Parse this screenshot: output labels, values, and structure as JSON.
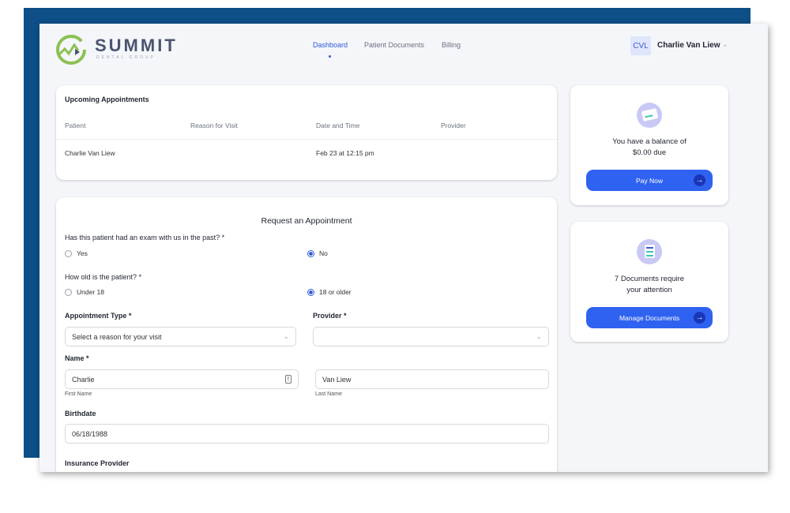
{
  "brand": {
    "name": "SUMMIT",
    "sub": "DENTAL GROUP",
    "logo_color": "#8cc152"
  },
  "nav": {
    "items": [
      {
        "label": "Dashboard",
        "active": true
      },
      {
        "label": "Patient Documents"
      },
      {
        "label": "Billing"
      }
    ]
  },
  "user": {
    "initials": "CVL",
    "name": "Charlie Van Liew"
  },
  "appointments": {
    "title": "Upcoming Appointments",
    "columns": [
      "Patient",
      "Reason for Visit",
      "Date and Time",
      "Provider"
    ],
    "rows": [
      {
        "patient": "Charlie Van Liew",
        "reason": "",
        "datetime": "Feb 23 at 12:15 pm",
        "provider": ""
      }
    ]
  },
  "form": {
    "title": "Request an Appointment",
    "q_exam": "Has this patient had an exam with us in the past? *",
    "exam_yes": "Yes",
    "exam_no": "No",
    "exam_selected": "No",
    "q_age": "How old is the patient? *",
    "age_under": "Under 18",
    "age_over": "18 or older",
    "age_selected": "18 or older",
    "appt_type_label": "Appointment Type *",
    "appt_type_placeholder": "Select a reason for your visit",
    "provider_label": "Provider *",
    "provider_value": "",
    "name_label": "Name *",
    "first_name": "Charlie",
    "first_name_hint": "First Name",
    "last_name": "Van Liew",
    "last_name_hint": "Last Name",
    "birthdate_label": "Birthdate",
    "birthdate": "06/18/1988",
    "insurance_label": "Insurance Provider"
  },
  "balance": {
    "line1": "You have a balance of",
    "line2": "$0.00 due",
    "button": "Pay Now"
  },
  "documents": {
    "line1": "7 Documents require",
    "line2": "your attention",
    "button": "Manage Documents"
  },
  "colors": {
    "accent": "#2f62f0",
    "frame": "#0d4f86"
  }
}
